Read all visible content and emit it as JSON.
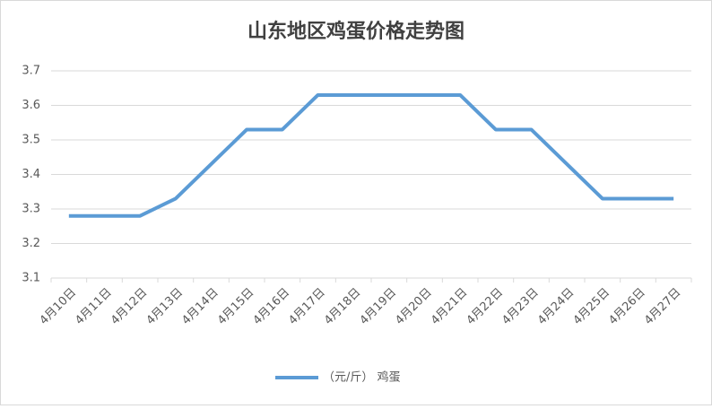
{
  "chart_data": {
    "type": "line",
    "title": "山东地区鸡蛋价格走势图",
    "categories": [
      "4月10日",
      "4月11日",
      "4月12日",
      "4月13日",
      "4月14日",
      "4月15日",
      "4月16日",
      "4月17日",
      "4月18日",
      "4月19日",
      "4月20日",
      "4月21日",
      "4月22日",
      "4月23日",
      "4月24日",
      "4月25日",
      "4月26日",
      "4月27日"
    ],
    "series": [
      {
        "name": "（元/斤） 鸡蛋",
        "color": "#5b9bd5",
        "values": [
          3.28,
          3.28,
          3.28,
          3.33,
          3.43,
          3.53,
          3.53,
          3.63,
          3.63,
          3.63,
          3.63,
          3.63,
          3.53,
          3.53,
          3.43,
          3.33,
          3.33,
          3.33
        ]
      }
    ],
    "ylim": [
      3.1,
      3.7
    ],
    "yticks": [
      3.1,
      3.2,
      3.3,
      3.4,
      3.5,
      3.6,
      3.7
    ],
    "grid": true,
    "legend": "bottom"
  }
}
